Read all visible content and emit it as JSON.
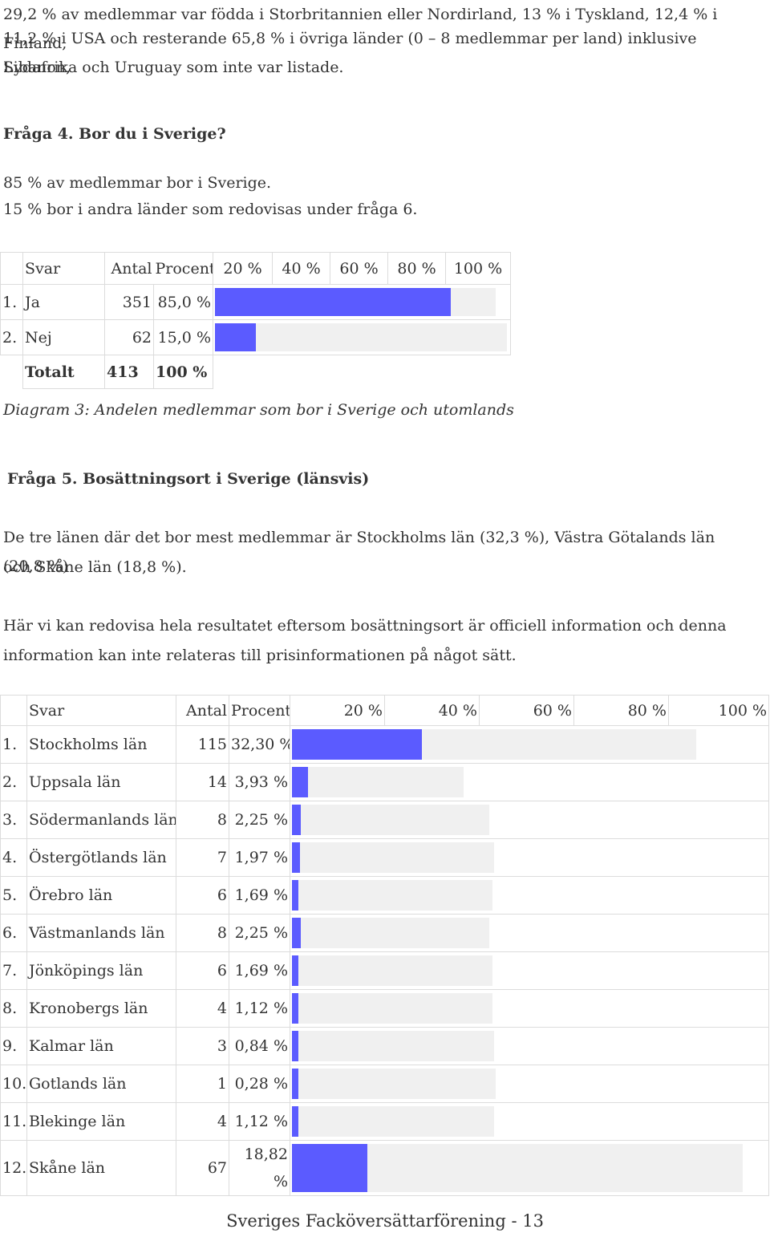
{
  "intro": {
    "line1": "29,2 % av medlemmar var födda i Storbritannien eller Nordirland, 13 % i Tyskland, 12,4 % i Finland,",
    "line2": "11,2 % i USA och resterande 65,8 % i övriga länder (0 – 8 medlemmar per land) inklusive Libanon,",
    "line3": "Sydafrika och Uruguay som inte var listade."
  },
  "q4": {
    "heading": "Fråga 4. Bor du i Sverige?",
    "p1": "85 % av medlemmar bor i Sverige.",
    "p2": "15 % bor i andra länder som redovisas under fråga 6.",
    "headers": {
      "svar": "Svar",
      "antal": "Antal",
      "procent": "Procent",
      "ticks": [
        "20 %",
        "40 %",
        "60 %",
        "80 %",
        "100 %"
      ]
    },
    "rows": [
      {
        "num": "1.",
        "label": "Ja",
        "antal": "351",
        "procent": "85,0 %",
        "fraction": 0.85
      },
      {
        "num": "2.",
        "label": "Nej",
        "antal": "62",
        "procent": "15,0 %",
        "fraction": 0.15
      }
    ],
    "total": {
      "label": "Totalt",
      "antal": "413",
      "procent": "100 %"
    },
    "caption": "Diagram 3: Andelen medlemmar som bor i Sverige och utomlands"
  },
  "q5": {
    "heading": "Fråga 5. Bosättningsort i Sverige (länsvis)",
    "p1a": "De tre länen där det bor mest medlemmar är Stockholms län (32,3 %), Västra Götalands län (20,8 %)",
    "p1b": "och Skåne län (18,8 %).",
    "p2a": "Här vi kan redovisa hela resultatet eftersom bosättningsort är officiell information och denna",
    "p2b": "information kan inte relateras till prisinformationen på något sätt.",
    "headers": {
      "svar": "Svar",
      "antal": "Antal",
      "procent": "Procent",
      "ticks": [
        "20 %",
        "40 %",
        "60 %",
        "80 %",
        "100 %"
      ]
    },
    "rows": [
      {
        "num": "1.",
        "label": "Stockholms län",
        "antal": "115",
        "procent": "32,30 %",
        "fraction": 0.323
      },
      {
        "num": "2.",
        "label": "Uppsala län",
        "antal": "14",
        "procent": "3,93 %",
        "fraction": 0.0393
      },
      {
        "num": "3.",
        "label": "Södermanlands län",
        "antal": "8",
        "procent": "2,25 %",
        "fraction": 0.0225
      },
      {
        "num": "4.",
        "label": "Östergötlands län",
        "antal": "7",
        "procent": "1,97 %",
        "fraction": 0.0197
      },
      {
        "num": "5.",
        "label": "Örebro län",
        "antal": "6",
        "procent": "1,69 %",
        "fraction": 0.0169
      },
      {
        "num": "6.",
        "label": "Västmanlands län",
        "antal": "8",
        "procent": "2,25 %",
        "fraction": 0.0225
      },
      {
        "num": "7.",
        "label": "Jönköpings län",
        "antal": "6",
        "procent": "1,69 %",
        "fraction": 0.0169
      },
      {
        "num": "8.",
        "label": "Kronobergs län",
        "antal": "4",
        "procent": "1,12 %",
        "fraction": 0.0112
      },
      {
        "num": "9.",
        "label": "Kalmar län",
        "antal": "3",
        "procent": "0,84 %",
        "fraction": 0.0084
      },
      {
        "num": "10.",
        "label": "Gotlands län",
        "antal": "1",
        "procent": "0,28 %",
        "fraction": 0.0028
      },
      {
        "num": "11.",
        "label": "Blekinge län",
        "antal": "4",
        "procent": "1,12 %",
        "fraction": 0.0112
      },
      {
        "num": "12.",
        "label": "Skåne län",
        "antal": "67",
        "procent": "18,82 %",
        "fraction": 0.1882
      }
    ]
  },
  "footer": "Sveriges Facköversättarförening - 13",
  "colors": {
    "bar": "#5b5bff",
    "track": "#f0f0f0",
    "border": "#dcdcdc"
  }
}
